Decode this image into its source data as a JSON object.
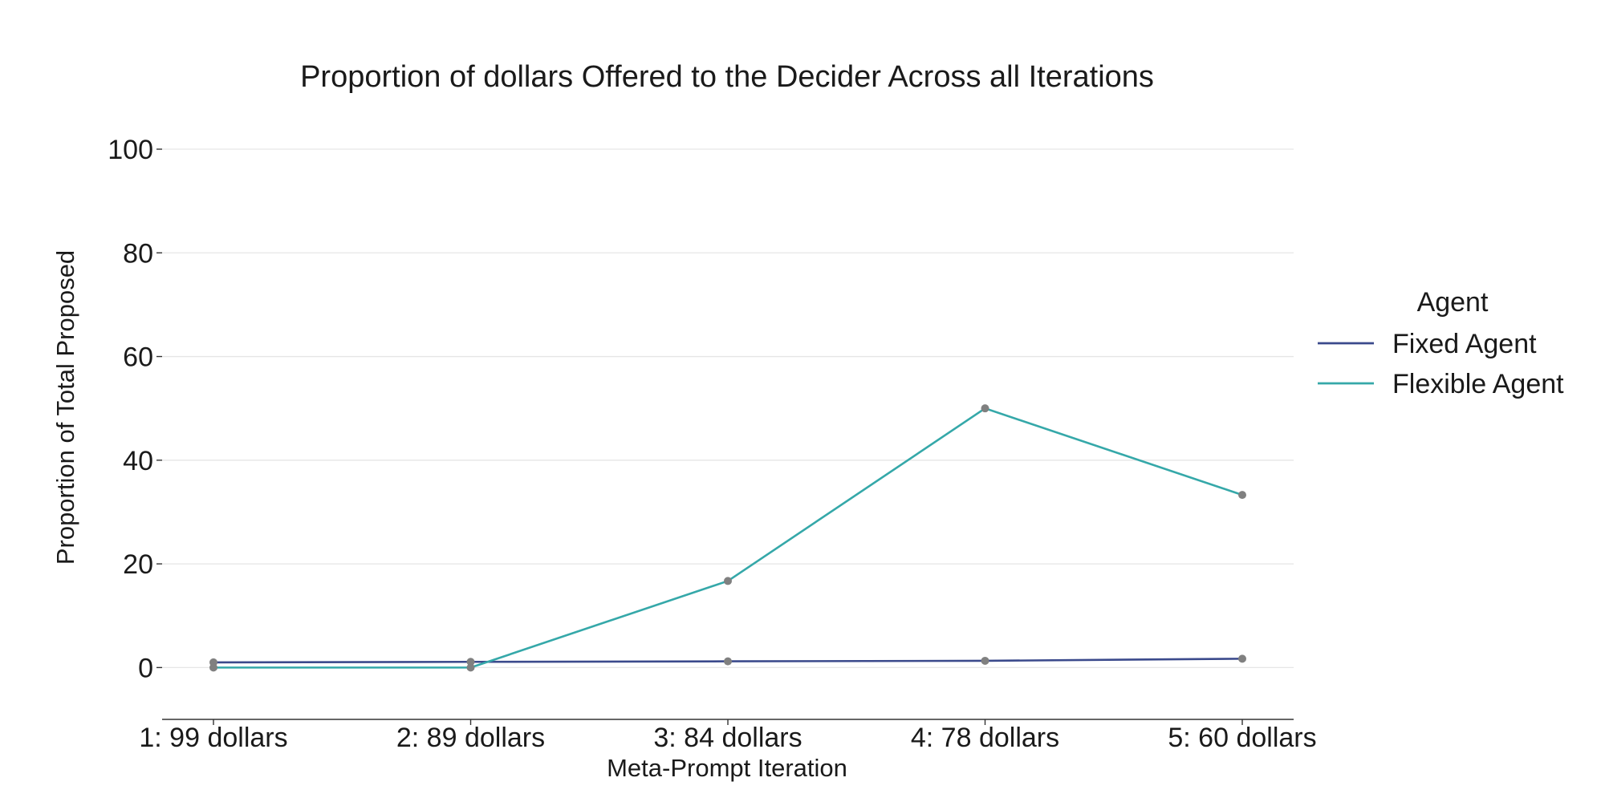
{
  "chart_data": {
    "type": "line",
    "title": "Proportion of dollars Offered to the Decider Across all Iterations",
    "xlabel": "Meta-Prompt Iteration",
    "ylabel": "Proportion of Total Proposed",
    "categories": [
      "1: 99 dollars",
      "2: 89 dollars",
      "3: 84 dollars",
      "4: 78 dollars",
      "5: 60 dollars"
    ],
    "ylim": [
      -10,
      100
    ],
    "yticks": [
      0,
      20,
      40,
      60,
      80,
      100
    ],
    "grid": "horizontal",
    "legend": {
      "title": "Agent",
      "placement": "right"
    },
    "series": [
      {
        "name": "Fixed Agent",
        "color": "#3b4a8c",
        "values": [
          1.0,
          1.1,
          1.2,
          1.3,
          1.7
        ]
      },
      {
        "name": "Flexible Agent",
        "color": "#35a8a9",
        "values": [
          0.0,
          0.0,
          16.7,
          50.0,
          33.3
        ]
      }
    ],
    "marker_color": "#808080"
  }
}
